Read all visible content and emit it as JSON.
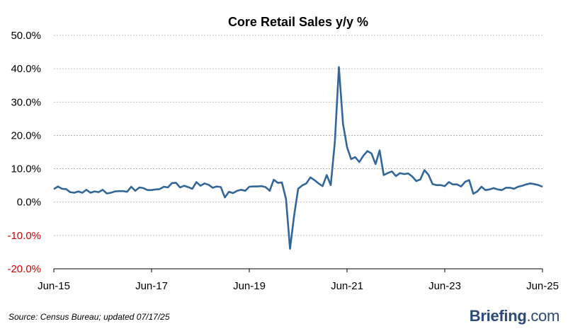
{
  "chart_data": {
    "type": "line",
    "title": "Core Retail Sales y/y %",
    "xlabel": "",
    "ylabel": "",
    "ylim": [
      -20,
      50
    ],
    "y_ticks": [
      50,
      40,
      30,
      20,
      10,
      0,
      -10,
      -20
    ],
    "y_tick_labels": [
      "50.0%",
      "40.0%",
      "30.0%",
      "20.0%",
      "10.0%",
      "0.0%",
      "-10.0%",
      "-20.0%"
    ],
    "negative_tick_color": "#cc0000",
    "x_tick_labels": [
      "Jun-15",
      "Jun-17",
      "Jun-19",
      "Jun-21",
      "Jun-23",
      "Jun-25"
    ],
    "x_range": [
      "Jun-15",
      "Jun-25"
    ],
    "grid": true,
    "line_color": "#336699",
    "series": [
      {
        "values": [
          3.9,
          4.7,
          4.0,
          3.9,
          3.0,
          2.8,
          3.2,
          2.8,
          3.7,
          2.8,
          3.2,
          3.0,
          3.7,
          2.6,
          2.8,
          3.2,
          3.3,
          3.3,
          3.1,
          4.6,
          3.4,
          4.4,
          4.2,
          3.6,
          3.6,
          3.8,
          3.9,
          4.6,
          4.4,
          5.7,
          5.8,
          4.4,
          4.9,
          4.5,
          4.0,
          6.0,
          4.9,
          5.6,
          5.2,
          4.3,
          4.7,
          4.5,
          1.4,
          3.1,
          2.7,
          3.4,
          3.7,
          3.4,
          4.6,
          4.7,
          4.7,
          4.8,
          4.5,
          3.4,
          6.7,
          5.8,
          5.9,
          1.0,
          -14.0,
          -4.0,
          4.0,
          5.0,
          5.6,
          7.4,
          6.6,
          5.6,
          4.8,
          8.1,
          5.1,
          18.0,
          40.5,
          23.5,
          16.5,
          12.9,
          13.5,
          12.0,
          13.9,
          15.3,
          14.6,
          11.4,
          15.5,
          8.1,
          8.7,
          9.2,
          7.8,
          8.7,
          8.4,
          8.6,
          7.7,
          6.3,
          6.8,
          9.6,
          8.2,
          5.4,
          5.1,
          5.1,
          4.8,
          6.0,
          5.3,
          5.3,
          4.7,
          6.1,
          6.6,
          2.5,
          3.2,
          4.6,
          3.6,
          3.8,
          4.2,
          3.8,
          3.6,
          4.3,
          4.3,
          4.0,
          4.6,
          4.9,
          5.3,
          5.6,
          5.4,
          5.1,
          4.6
        ]
      }
    ]
  },
  "footer": {
    "source": "Source:  Census Bureau;  updated  07/17/25",
    "brand_main": "Briefing",
    "brand_suffix": ".com"
  }
}
